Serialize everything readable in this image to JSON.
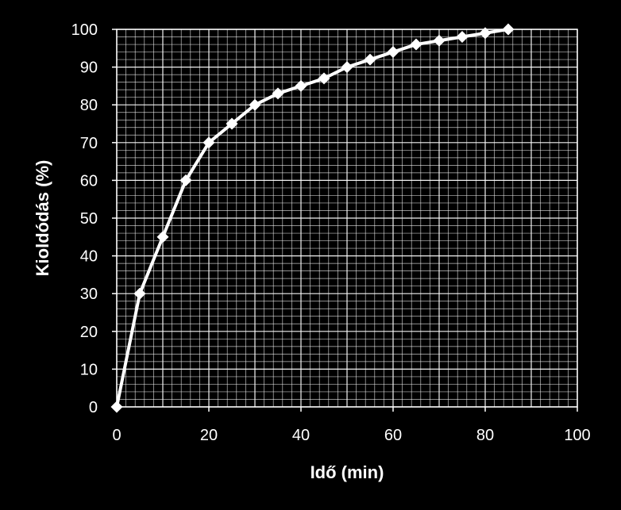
{
  "chart_data": {
    "type": "line",
    "xlabel": "Idő (min)",
    "ylabel": "Kioldódás (%)",
    "xlim": [
      0,
      100
    ],
    "ylim": [
      0,
      100
    ],
    "x_ticks": [
      "0",
      "20",
      "40",
      "60",
      "80",
      "100"
    ],
    "y_ticks": [
      "0",
      "10",
      "20",
      "30",
      "40",
      "50",
      "60",
      "70",
      "80",
      "90",
      "100"
    ],
    "grid": true,
    "marker": "diamond",
    "colors": {
      "background": "#000000",
      "line": "#ffffff",
      "grid": "#ffffff",
      "text": "#ffffff"
    },
    "series": [
      {
        "x": [
          0,
          5,
          10,
          15,
          20,
          25,
          30,
          35,
          40,
          45,
          50,
          55,
          60,
          65,
          70,
          75,
          80,
          85
        ],
        "values": [
          0,
          30,
          45,
          60,
          70,
          75,
          80,
          83,
          85,
          87,
          90,
          92,
          94,
          96,
          97,
          98,
          99,
          100
        ]
      }
    ]
  }
}
